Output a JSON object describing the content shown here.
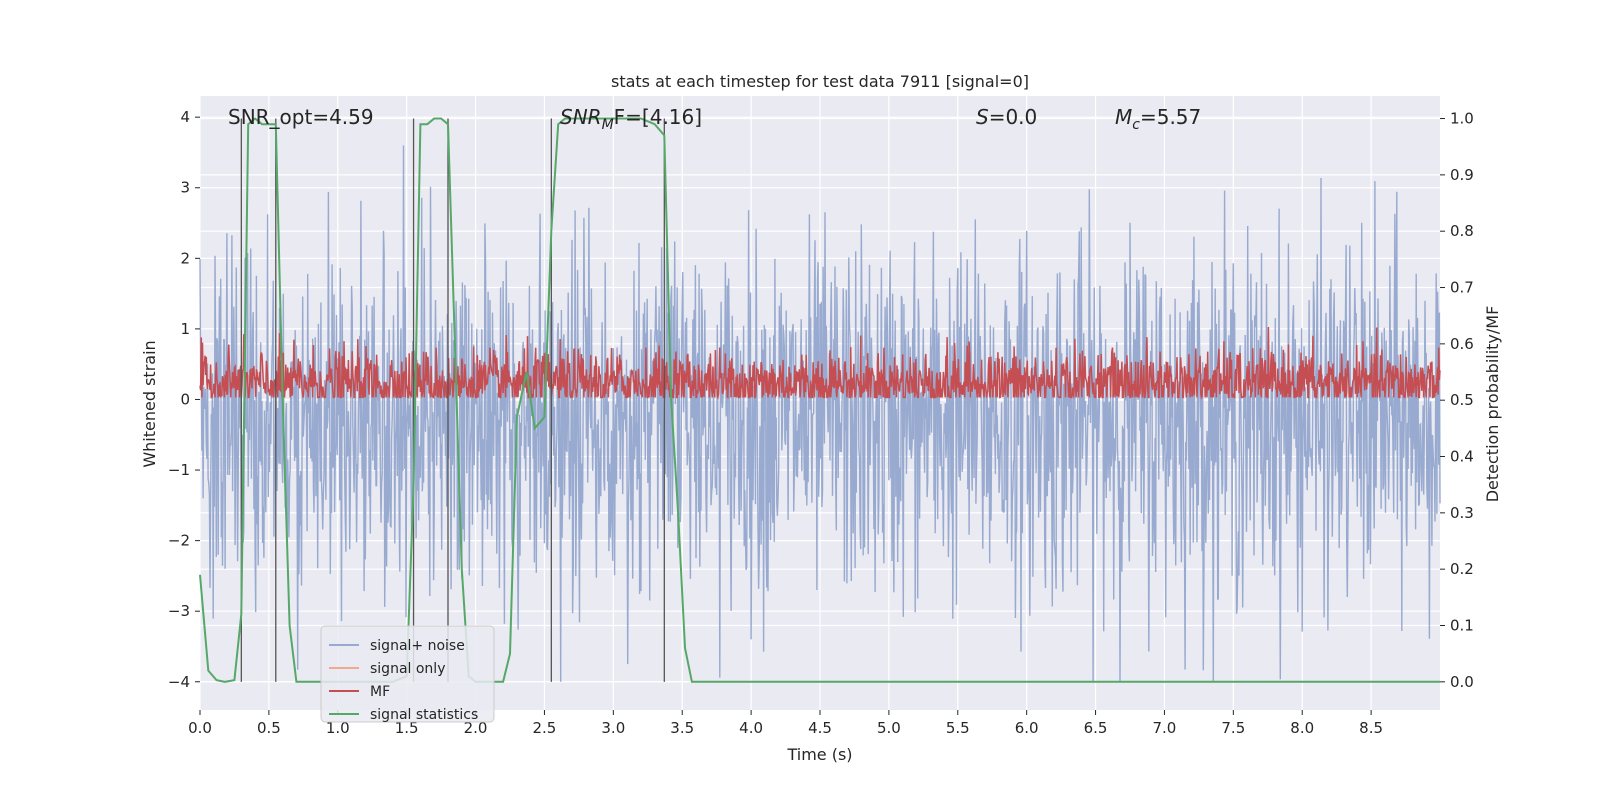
{
  "chart_data": {
    "type": "line",
    "title": "stats at each timestep for test data 7911 [signal=0]",
    "xlabel": "Time (s)",
    "ylabel_left": "Whitened strain",
    "ylabel_right": "Detection probability/MF",
    "xlim": [
      0.0,
      9.0
    ],
    "ylim_left": [
      -4.4,
      4.3
    ],
    "ylim_right": [
      -0.05,
      1.04
    ],
    "x_ticks": [
      0.0,
      0.5,
      1.0,
      1.5,
      2.0,
      2.5,
      3.0,
      3.5,
      4.0,
      4.5,
      5.0,
      5.5,
      6.0,
      6.5,
      7.0,
      7.5,
      8.0,
      8.5
    ],
    "x_tick_labels": [
      "0.0",
      "0.5",
      "1.0",
      "1.5",
      "2.0",
      "2.5",
      "3.0",
      "3.5",
      "4.0",
      "4.5",
      "5.0",
      "5.5",
      "6.0",
      "6.5",
      "7.0",
      "7.5",
      "8.0",
      "8.5"
    ],
    "y_left_ticks": [
      4,
      3,
      2,
      1,
      0,
      -1,
      -2,
      -3,
      -4
    ],
    "y_left_tick_labels": [
      "4",
      "3",
      "2",
      "1",
      "0",
      "−1",
      "−2",
      "−3",
      "−4"
    ],
    "y_right_ticks": [
      1.0,
      0.9,
      0.8,
      0.7,
      0.6,
      0.5,
      0.4,
      0.3,
      0.2,
      0.1,
      0.0
    ],
    "y_right_tick_labels": [
      "1.0",
      "0.9",
      "0.8",
      "0.7",
      "0.6",
      "0.5",
      "0.4",
      "0.3",
      "0.2",
      "0.1",
      "0.0"
    ],
    "annotations": {
      "snr_opt": "SNR_opt=4.59",
      "snr_mf_main": "SNR",
      "snr_mf_sub": "M",
      "snr_mf_rest": "F=[4.16]",
      "s_main": "S",
      "s_rest": "=0.0",
      "mc_main": "M",
      "mc_sub": "c",
      "mc_rest": "=5.57"
    },
    "vertical_markers_s": [
      0.3,
      0.55,
      1.55,
      1.8,
      2.55,
      3.37
    ],
    "legend": {
      "placement": "lower-left",
      "entries": [
        {
          "label": "signal+ noise",
          "color": "#98aacf"
        },
        {
          "label": "signal only",
          "color": "#eea98e"
        },
        {
          "label": "MF",
          "color": "#c44e52"
        },
        {
          "label": "signal statistics",
          "color": "#55a868"
        }
      ]
    },
    "series": [
      {
        "name": "signal+ noise",
        "axis": "left",
        "style": "dense-noise",
        "sample_rate_hz": 220,
        "mean": -0.3,
        "std": 1.25,
        "range": [
          -4.0,
          3.6
        ]
      },
      {
        "name": "signal only",
        "axis": "left",
        "style": "line",
        "x": [
          0.0,
          9.0
        ],
        "y": [
          0.0,
          0.0
        ]
      },
      {
        "name": "MF",
        "axis": "right",
        "style": "dense-noise",
        "sample_rate_hz": 220,
        "mean": 0.53,
        "std": 0.03,
        "range": [
          0.505,
          0.63
        ]
      },
      {
        "name": "signal statistics",
        "axis": "right",
        "style": "line",
        "x": [
          0.0,
          0.06,
          0.12,
          0.18,
          0.25,
          0.3,
          0.35,
          0.4,
          0.45,
          0.5,
          0.55,
          0.6,
          0.65,
          0.7,
          0.75,
          0.8,
          0.9,
          1.0,
          1.2,
          1.4,
          1.5,
          1.55,
          1.6,
          1.65,
          1.7,
          1.75,
          1.8,
          1.85,
          1.9,
          1.95,
          2.0,
          2.1,
          2.2,
          2.25,
          2.3,
          2.37,
          2.43,
          2.5,
          2.55,
          2.6,
          2.65,
          3.0,
          3.2,
          3.3,
          3.37,
          3.42,
          3.47,
          3.52,
          3.57,
          3.62,
          4.0,
          9.0
        ],
        "y": [
          0.19,
          0.02,
          0.003,
          0.0,
          0.003,
          0.12,
          0.99,
          1.0,
          0.99,
          0.99,
          0.99,
          0.5,
          0.1,
          0.0,
          0.0,
          0.0,
          0.0,
          0.0,
          0.0,
          0.0,
          0.01,
          0.35,
          0.99,
          0.99,
          1.0,
          1.0,
          0.99,
          0.6,
          0.2,
          0.01,
          0.0,
          0.0,
          0.0,
          0.05,
          0.47,
          0.55,
          0.45,
          0.47,
          0.8,
          0.99,
          1.0,
          1.0,
          1.0,
          0.99,
          0.97,
          0.5,
          0.3,
          0.06,
          0.0,
          0.0,
          0.0,
          0.0
        ]
      }
    ]
  }
}
